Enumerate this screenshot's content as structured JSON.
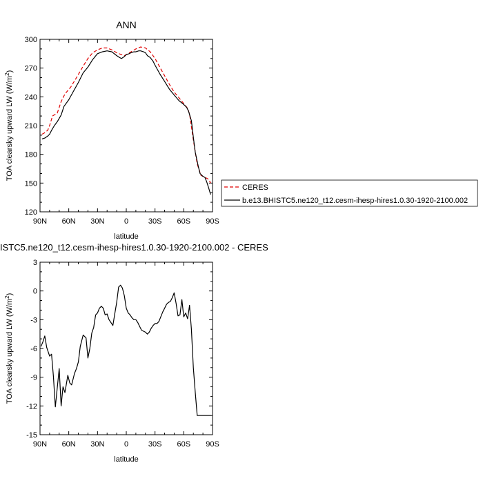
{
  "chart_data": [
    {
      "type": "line",
      "title": "ANN",
      "xlabel": "latitude",
      "ylabel": "TOA clearsky upward LW (W/m²)",
      "ylabel_base": "TOA clearsky upward LW (W/m",
      "ylabel_sup": "2",
      "ylabel_end": ")",
      "xlim": [
        90,
        -90
      ],
      "ylim": [
        120,
        300
      ],
      "x_ticks": [
        90,
        60,
        30,
        0,
        -30,
        -60,
        -90
      ],
      "x_tick_labels": [
        "90N",
        "60N",
        "30N",
        "0",
        "30S",
        "60S",
        "90S"
      ],
      "y_ticks": [
        120,
        150,
        180,
        210,
        240,
        270,
        300
      ],
      "y_tick_labels": [
        "120",
        "150",
        "180",
        "210",
        "240",
        "270",
        "300"
      ],
      "legend_placement": "right",
      "series": [
        {
          "name": "CERES",
          "color": "#e00000",
          "dash": true,
          "x": [
            88,
            86,
            82,
            80,
            77,
            72,
            68,
            64,
            58,
            52,
            45,
            40,
            35,
            30,
            25,
            20,
            15,
            10,
            5,
            2,
            -5,
            -10,
            -15,
            -20,
            -25,
            -30,
            -35,
            -40,
            -45,
            -50,
            -55,
            -60,
            -64,
            -66,
            -70,
            -74,
            -78,
            -80,
            -84,
            -86,
            -88
          ],
          "y": [
            201,
            202,
            205,
            210,
            220,
            223,
            235,
            243,
            250,
            260,
            272,
            280,
            286,
            289,
            291,
            291,
            289,
            286,
            284,
            283,
            287,
            290,
            292,
            291,
            287,
            280,
            271,
            262,
            253,
            245,
            239,
            233,
            228,
            222,
            195,
            170,
            158,
            157,
            155,
            154,
            150
          ]
        },
        {
          "name": "b.e13.BHISTC5.ne120_t12.cesm-ihesp-hires1.0.30-1920-2100.002",
          "color": "#000000",
          "dash": false,
          "x": [
            88,
            85,
            82,
            80,
            78,
            75,
            72,
            68,
            65,
            60,
            55,
            50,
            45,
            40,
            35,
            30,
            25,
            20,
            15,
            10,
            7,
            5,
            2,
            0,
            -3,
            -5,
            -8,
            -10,
            -13,
            -15,
            -18,
            -20,
            -22,
            -25,
            -28,
            -30,
            -35,
            -40,
            -45,
            -50,
            -55,
            -60,
            -63,
            -65,
            -68,
            -70,
            -72,
            -75,
            -77,
            -80,
            -82,
            -84,
            -86,
            -88
          ],
          "y": [
            196,
            197,
            199,
            201,
            205,
            210,
            214,
            221,
            230,
            237,
            246,
            255,
            265,
            271,
            279,
            285,
            287,
            288,
            287,
            283,
            281,
            280,
            282,
            284,
            285,
            286,
            287,
            287,
            288,
            288,
            287,
            286,
            283,
            281,
            277,
            273,
            264,
            256,
            248,
            242,
            236,
            232,
            229,
            225,
            215,
            198,
            182,
            168,
            160,
            157,
            156,
            151,
            145,
            138
          ]
        }
      ]
    },
    {
      "type": "line",
      "title": "ISTC5.ne120_t12.cesm-ihesp-hires1.0.30-1920-2100.002 - CERES",
      "xlabel": "latitude",
      "ylabel": "TOA clearsky upward LW (W/m²)",
      "ylabel_base": "TOA clearsky upward LW (W/m",
      "ylabel_sup": "2",
      "ylabel_end": ")",
      "xlim": [
        90,
        -90
      ],
      "ylim": [
        -15,
        3
      ],
      "x_ticks": [
        90,
        60,
        30,
        0,
        -30,
        -60,
        -90
      ],
      "x_tick_labels": [
        "90N",
        "60N",
        "30N",
        "0",
        "30S",
        "60S",
        "90S"
      ],
      "y_ticks": [
        -15,
        -12,
        -9,
        -6,
        -3,
        0,
        3
      ],
      "y_tick_labels": [
        "-15",
        "-12",
        "-9",
        "-6",
        "-3",
        "0",
        "3"
      ],
      "series": [
        {
          "color": "#000000",
          "dash": false,
          "x": [
            89,
            87,
            85,
            83,
            80,
            78,
            76,
            74,
            72,
            70,
            68,
            66,
            64,
            61,
            59,
            57,
            54,
            52,
            50,
            48,
            45,
            42,
            40,
            38,
            36,
            34,
            32,
            30,
            28,
            26,
            24,
            22,
            20,
            18,
            16,
            14,
            12,
            10,
            8,
            6,
            4,
            2,
            0,
            -2,
            -4,
            -6,
            -8,
            -10,
            -12,
            -14,
            -16,
            -18,
            -20,
            -22,
            -24,
            -26,
            -28,
            -30,
            -32,
            -34,
            -36,
            -38,
            -40,
            -42,
            -44,
            -46,
            -48,
            -50,
            -52,
            -54,
            -56,
            -58,
            -60,
            -62,
            -64,
            -66,
            -68,
            -70,
            -72,
            -74,
            -76,
            -78,
            -80,
            -82,
            -84,
            -86,
            -88
          ],
          "y": [
            -5.8,
            -5.3,
            -4.7,
            -5.9,
            -6.8,
            -6.6,
            -8.9,
            -12.1,
            -10.1,
            -8.1,
            -12.0,
            -10.0,
            -10.6,
            -8.8,
            -9.6,
            -9.8,
            -8.6,
            -8.1,
            -7.4,
            -5.8,
            -4.6,
            -4.9,
            -7.0,
            -6.0,
            -4.4,
            -3.8,
            -2.5,
            -2.3,
            -1.8,
            -1.6,
            -1.8,
            -2.5,
            -2.4,
            -3.0,
            -3.3,
            -3.6,
            -2.4,
            -1.2,
            0.4,
            0.6,
            0.3,
            -0.5,
            -1.8,
            -2.3,
            -2.5,
            -2.8,
            -3.0,
            -3.0,
            -3.3,
            -3.7,
            -4.1,
            -4.2,
            -4.3,
            -4.5,
            -4.3,
            -3.9,
            -3.6,
            -3.4,
            -3.4,
            -3.2,
            -2.7,
            -2.2,
            -1.8,
            -1.4,
            -1.2,
            -1.1,
            -0.7,
            -0.2,
            -1.3,
            -2.6,
            -2.5,
            -0.9,
            -2.7,
            -2.3,
            -2.9,
            -1.5,
            -4.0,
            -8.0,
            -10.6,
            -13.0,
            -13.0,
            -13.0,
            -13.0,
            -13.0,
            -13.0,
            -13.0,
            -13.0
          ]
        }
      ]
    }
  ]
}
